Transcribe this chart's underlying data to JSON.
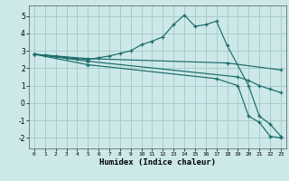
{
  "xlabel": "Humidex (Indice chaleur)",
  "background_color": "#cce8e8",
  "grid_color": "#aacccc",
  "line_color": "#1a6b6b",
  "xlim": [
    -0.5,
    23.5
  ],
  "ylim": [
    -2.6,
    5.6
  ],
  "xticks": [
    0,
    1,
    2,
    3,
    4,
    5,
    6,
    7,
    8,
    9,
    10,
    11,
    12,
    13,
    14,
    15,
    16,
    17,
    18,
    19,
    20,
    21,
    22,
    23
  ],
  "yticks": [
    -2,
    -1,
    0,
    1,
    2,
    3,
    4,
    5
  ],
  "lines": [
    {
      "x": [
        0,
        1,
        2,
        3,
        4,
        5,
        6,
        7,
        8,
        9,
        10,
        11,
        12,
        13,
        14,
        15,
        16,
        17,
        18,
        20,
        21,
        22,
        23
      ],
      "y": [
        2.8,
        2.75,
        2.7,
        2.6,
        2.55,
        2.5,
        2.6,
        2.7,
        2.85,
        3.0,
        3.35,
        3.55,
        3.8,
        4.5,
        5.05,
        4.4,
        4.5,
        4.7,
        3.3,
        1.0,
        -0.75,
        -1.2,
        -1.9
      ]
    },
    {
      "x": [
        0,
        5,
        18,
        23
      ],
      "y": [
        2.8,
        2.55,
        2.3,
        1.9
      ]
    },
    {
      "x": [
        0,
        5,
        19,
        20,
        21,
        22,
        23
      ],
      "y": [
        2.8,
        2.4,
        1.5,
        1.3,
        1.0,
        0.8,
        0.6
      ]
    },
    {
      "x": [
        0,
        5,
        17,
        19,
        20,
        21,
        22,
        23
      ],
      "y": [
        2.8,
        2.2,
        1.4,
        1.0,
        -0.75,
        -1.1,
        -1.9,
        -2.0
      ]
    }
  ]
}
